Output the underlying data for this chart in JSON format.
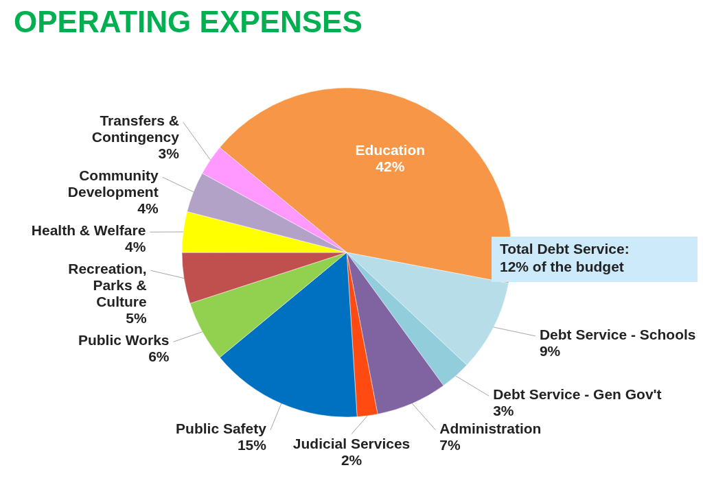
{
  "chart_data": {
    "type": "pie",
    "title": "OPERATING EXPENSES",
    "categories": [
      "Education",
      "Debt Service - Schools",
      "Debt Service - Gen Gov't",
      "Administration",
      "Judicial Services",
      "Public Safety",
      "Public Works",
      "Recreation, Parks & Culture",
      "Health & Welfare",
      "Community Development",
      "Transfers & Contingency"
    ],
    "values": [
      42,
      9,
      3,
      7,
      2,
      15,
      6,
      5,
      4,
      4,
      3
    ],
    "value_labels": [
      "42%",
      "9%",
      "3%",
      "7%",
      "2%",
      "15%",
      "6%",
      "5%",
      "4%",
      "4%",
      "3%"
    ],
    "colors": [
      "#f79646",
      "#b7dde8",
      "#92cddc",
      "#8064a2",
      "#ff4b12",
      "#0070c0",
      "#92d050",
      "#c0504d",
      "#ffff00",
      "#b3a2c7",
      "#ff99ff"
    ],
    "annotations": [
      "Total Debt Service: 12% of the budget"
    ]
  }
}
